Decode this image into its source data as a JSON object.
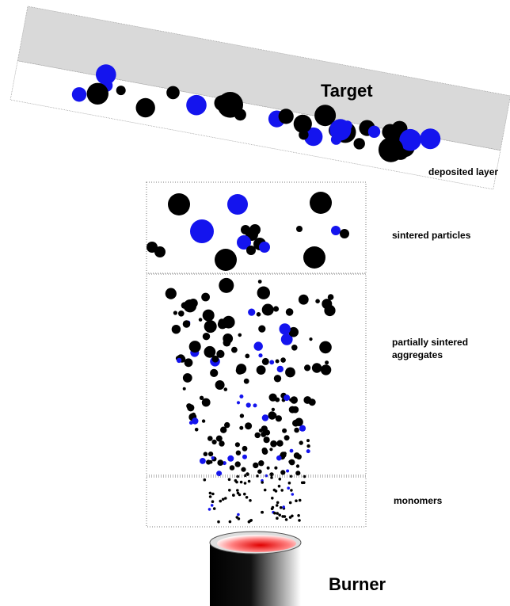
{
  "target": {
    "label": "Target",
    "layer_label": "deposited layer"
  },
  "zones": [
    {
      "lines": [
        "sintered particles"
      ]
    },
    {
      "lines": [
        "partially sintered",
        "aggregates"
      ]
    },
    {
      "lines": [
        "monomers"
      ]
    }
  ],
  "burner": {
    "label": "Burner"
  }
}
